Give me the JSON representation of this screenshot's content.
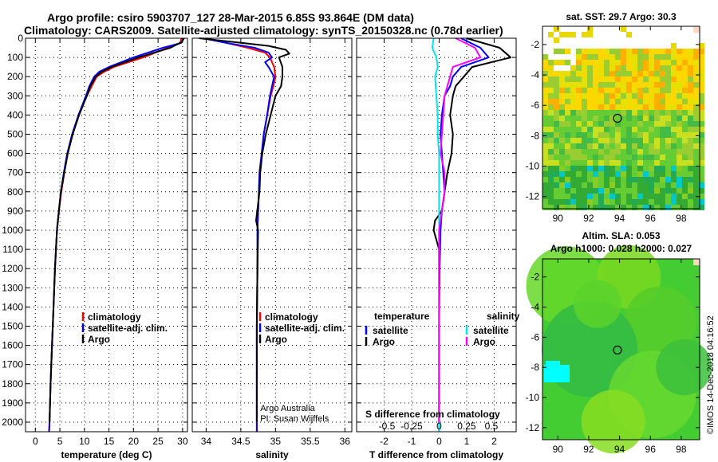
{
  "header": {
    "title_line1": "Argo profile: csiro 5903707_127 28-Mar-2015 6.85S 93.864E (DM data)",
    "title_line2": "Climatology: CARS2009. Satellite-adjusted climatology: synTS_20150328.nc (0.78d earlier)"
  },
  "chart_data": [
    {
      "type": "line",
      "xlabel": "temperature (deg C)",
      "xlim": [
        -2,
        31
      ],
      "xticks": [
        0,
        5,
        10,
        15,
        20,
        25,
        30
      ],
      "ylim": [
        2050,
        0
      ],
      "yticks": [
        0,
        100,
        200,
        300,
        400,
        500,
        600,
        700,
        800,
        900,
        1000,
        1100,
        1200,
        1300,
        1400,
        1500,
        1600,
        1700,
        1800,
        1900,
        2000
      ],
      "legend": [
        "climatology",
        "satellite-adj. clim.",
        "Argo"
      ],
      "series": [
        {
          "name": "climatology",
          "color": "#ff0000",
          "x": [
            29.8,
            29.5,
            27,
            22,
            16,
            14,
            12.5,
            11.5,
            10.5,
            8.8,
            7.6,
            6.6,
            5.9,
            5.3,
            4.8,
            4.4,
            4.0,
            3.7,
            3.4,
            3.1,
            2.9,
            2.8
          ],
          "y": [
            0,
            25,
            50,
            100,
            150,
            175,
            200,
            250,
            300,
            400,
            500,
            600,
            700,
            800,
            900,
            1000,
            1200,
            1400,
            1600,
            1800,
            2000,
            2050
          ]
        },
        {
          "name": "satellite-adj. clim.",
          "color": "#0000ff",
          "x": [
            30.2,
            29.7,
            26,
            20,
            15,
            13,
            12,
            11,
            10.3,
            8.8,
            7.5,
            6.5,
            5.8,
            5.2,
            4.8,
            4.4,
            4.0,
            3.7,
            3.4,
            3.1,
            2.9,
            2.8
          ],
          "y": [
            0,
            25,
            50,
            100,
            150,
            175,
            200,
            250,
            300,
            400,
            500,
            600,
            700,
            800,
            900,
            1000,
            1200,
            1400,
            1600,
            1800,
            2000,
            2050
          ]
        },
        {
          "name": "Argo",
          "color": "#000000",
          "x": [
            30.3,
            29.8,
            27.5,
            21,
            15.5,
            13.5,
            12.3,
            11.2,
            10.5,
            8.9,
            7.6,
            6.6,
            5.9,
            5.2,
            4.8,
            4.4,
            4.0,
            3.7,
            3.4,
            3.1,
            2.9
          ],
          "y": [
            0,
            20,
            50,
            100,
            150,
            175,
            200,
            250,
            300,
            400,
            500,
            600,
            700,
            800,
            900,
            1000,
            1200,
            1400,
            1600,
            1800,
            2000
          ]
        }
      ]
    },
    {
      "type": "line",
      "xlabel": "salinity",
      "xlim": [
        33.8,
        36.1
      ],
      "xticks": [
        34,
        34.5,
        35,
        35.5,
        36
      ],
      "ylim": [
        2050,
        0
      ],
      "legend": [
        "climatology",
        "satellite-adj. clim.",
        "Argo"
      ],
      "annotations": [
        "Argo Australia",
        "PI: Susan Wijffels"
      ],
      "series": [
        {
          "name": "climatology",
          "color": "#ff0000",
          "x": [
            34.0,
            34.3,
            34.6,
            34.85,
            34.92,
            34.95,
            34.98,
            35.0,
            34.97,
            34.93,
            34.88,
            34.83,
            34.8,
            34.77,
            34.76,
            34.75,
            34.74,
            34.74,
            34.73,
            34.73,
            34.73
          ],
          "y": [
            0,
            25,
            50,
            75,
            100,
            125,
            150,
            200,
            250,
            300,
            400,
            500,
            600,
            700,
            800,
            900,
            1000,
            1200,
            1500,
            1800,
            2050
          ]
        },
        {
          "name": "satellite-adj. clim.",
          "color": "#0000ff",
          "x": [
            33.95,
            34.3,
            34.7,
            34.9,
            34.95,
            34.85,
            34.9,
            34.98,
            34.95,
            34.92,
            34.88,
            34.83,
            34.8,
            34.77,
            34.76,
            34.75,
            34.74,
            34.74,
            34.73,
            34.73,
            34.73
          ],
          "y": [
            0,
            25,
            50,
            75,
            100,
            125,
            150,
            200,
            250,
            300,
            400,
            500,
            600,
            700,
            800,
            900,
            1000,
            1200,
            1500,
            1800,
            2050
          ]
        },
        {
          "name": "Argo",
          "color": "#000000",
          "x": [
            33.9,
            34.4,
            34.9,
            35.15,
            35.2,
            35.05,
            35.1,
            35.1,
            35.08,
            35.0,
            34.93,
            34.86,
            34.81,
            34.78,
            34.77,
            34.72,
            34.75,
            34.74,
            34.73,
            34.73
          ],
          "y": [
            0,
            20,
            40,
            60,
            80,
            100,
            150,
            200,
            250,
            300,
            400,
            500,
            600,
            700,
            800,
            950,
            1000,
            1200,
            1500,
            2000
          ]
        }
      ]
    },
    {
      "type": "line",
      "xlabel": "T difference from climatology",
      "xlabel_top": "S difference from climatology",
      "xlim": [
        -3,
        2.8
      ],
      "xticks": [
        -2,
        -1,
        0,
        1,
        2
      ],
      "xticks_top": [
        "-0.5",
        "-0.25",
        "0",
        "0.25",
        "0.5"
      ],
      "ylim": [
        2050,
        0
      ],
      "legend": {
        "temperature_header": "temperature",
        "salinity_header": "salinity",
        "temperature": [
          "satellite",
          "Argo"
        ],
        "salinity": [
          "satellite",
          "Argo"
        ]
      },
      "series": [
        {
          "name": "satellite",
          "color": "#0000ff",
          "x": [
            0.8,
            1.5,
            1.8,
            0.8,
            0.5,
            0.4,
            0.2,
            0.1,
            0.05,
            0.1,
            0.15,
            0.2,
            0.1,
            0.05,
            0.02,
            0.0,
            0.0,
            0.0
          ],
          "y": [
            0,
            50,
            100,
            150,
            200,
            250,
            300,
            400,
            500,
            600,
            700,
            800,
            900,
            1000,
            1200,
            1500,
            1800,
            2050
          ]
        },
        {
          "name": "Argo",
          "color": "#000000",
          "x": [
            1.0,
            2.2,
            2.6,
            1.2,
            0.9,
            0.6,
            0.5,
            0.4,
            0.5,
            0.45,
            0.3,
            0.2,
            0.1,
            -0.15,
            -0.2,
            0.0,
            0.0,
            0.0,
            0.0
          ],
          "y": [
            0,
            50,
            100,
            150,
            200,
            250,
            300,
            400,
            500,
            600,
            700,
            800,
            900,
            950,
            1000,
            1100,
            1200,
            1500,
            2000
          ]
        },
        {
          "name": "satellite",
          "color": "#00e5ee",
          "x": [
            -0.2,
            -0.25,
            -0.1,
            -0.05,
            -0.15,
            -0.1,
            -0.05,
            -0.05,
            0.0,
            0.0,
            0.0,
            0.0,
            0.0,
            0.0,
            0.0
          ],
          "y": [
            0,
            50,
            100,
            150,
            200,
            300,
            400,
            500,
            600,
            700,
            800,
            900,
            1000,
            1500,
            2050
          ]
        },
        {
          "name": "Argo",
          "color": "#ff00ff",
          "x": [
            0.6,
            1.3,
            1.5,
            0.5,
            0.4,
            0.2,
            0.15,
            0.1,
            0.05,
            0.2,
            0.2,
            0.1,
            0.0,
            0.0,
            0.0,
            0.0
          ],
          "y": [
            0,
            50,
            100,
            150,
            200,
            300,
            400,
            500,
            600,
            700,
            800,
            900,
            1000,
            1200,
            1500,
            2000
          ]
        }
      ]
    },
    {
      "type": "heatmap",
      "title": "sat. SST: 29.7 Argo: 30.3",
      "xticks": [
        90,
        92,
        94,
        96,
        98
      ],
      "yticks": [
        -2,
        -4,
        -6,
        -8,
        -10,
        -12
      ],
      "xlim": [
        89,
        99.2
      ],
      "ylim": [
        -12.8,
        -0.8
      ],
      "marker": {
        "lon": 93.864,
        "lat": -6.85
      }
    },
    {
      "type": "heatmap",
      "title": "Altim. SLA: 0.053",
      "subtitle": "Argo h1000: 0.028 h2000: 0.027",
      "xticks": [
        90,
        92,
        94,
        96,
        98
      ],
      "yticks": [
        -2,
        -4,
        -6,
        -8,
        -10,
        -12
      ],
      "xlim": [
        89,
        99.2
      ],
      "ylim": [
        -12.8,
        -0.8
      ],
      "marker": {
        "lon": 93.864,
        "lat": -6.85
      }
    }
  ],
  "credit": "©IMOS 14-Dec-2018 04:16:52"
}
